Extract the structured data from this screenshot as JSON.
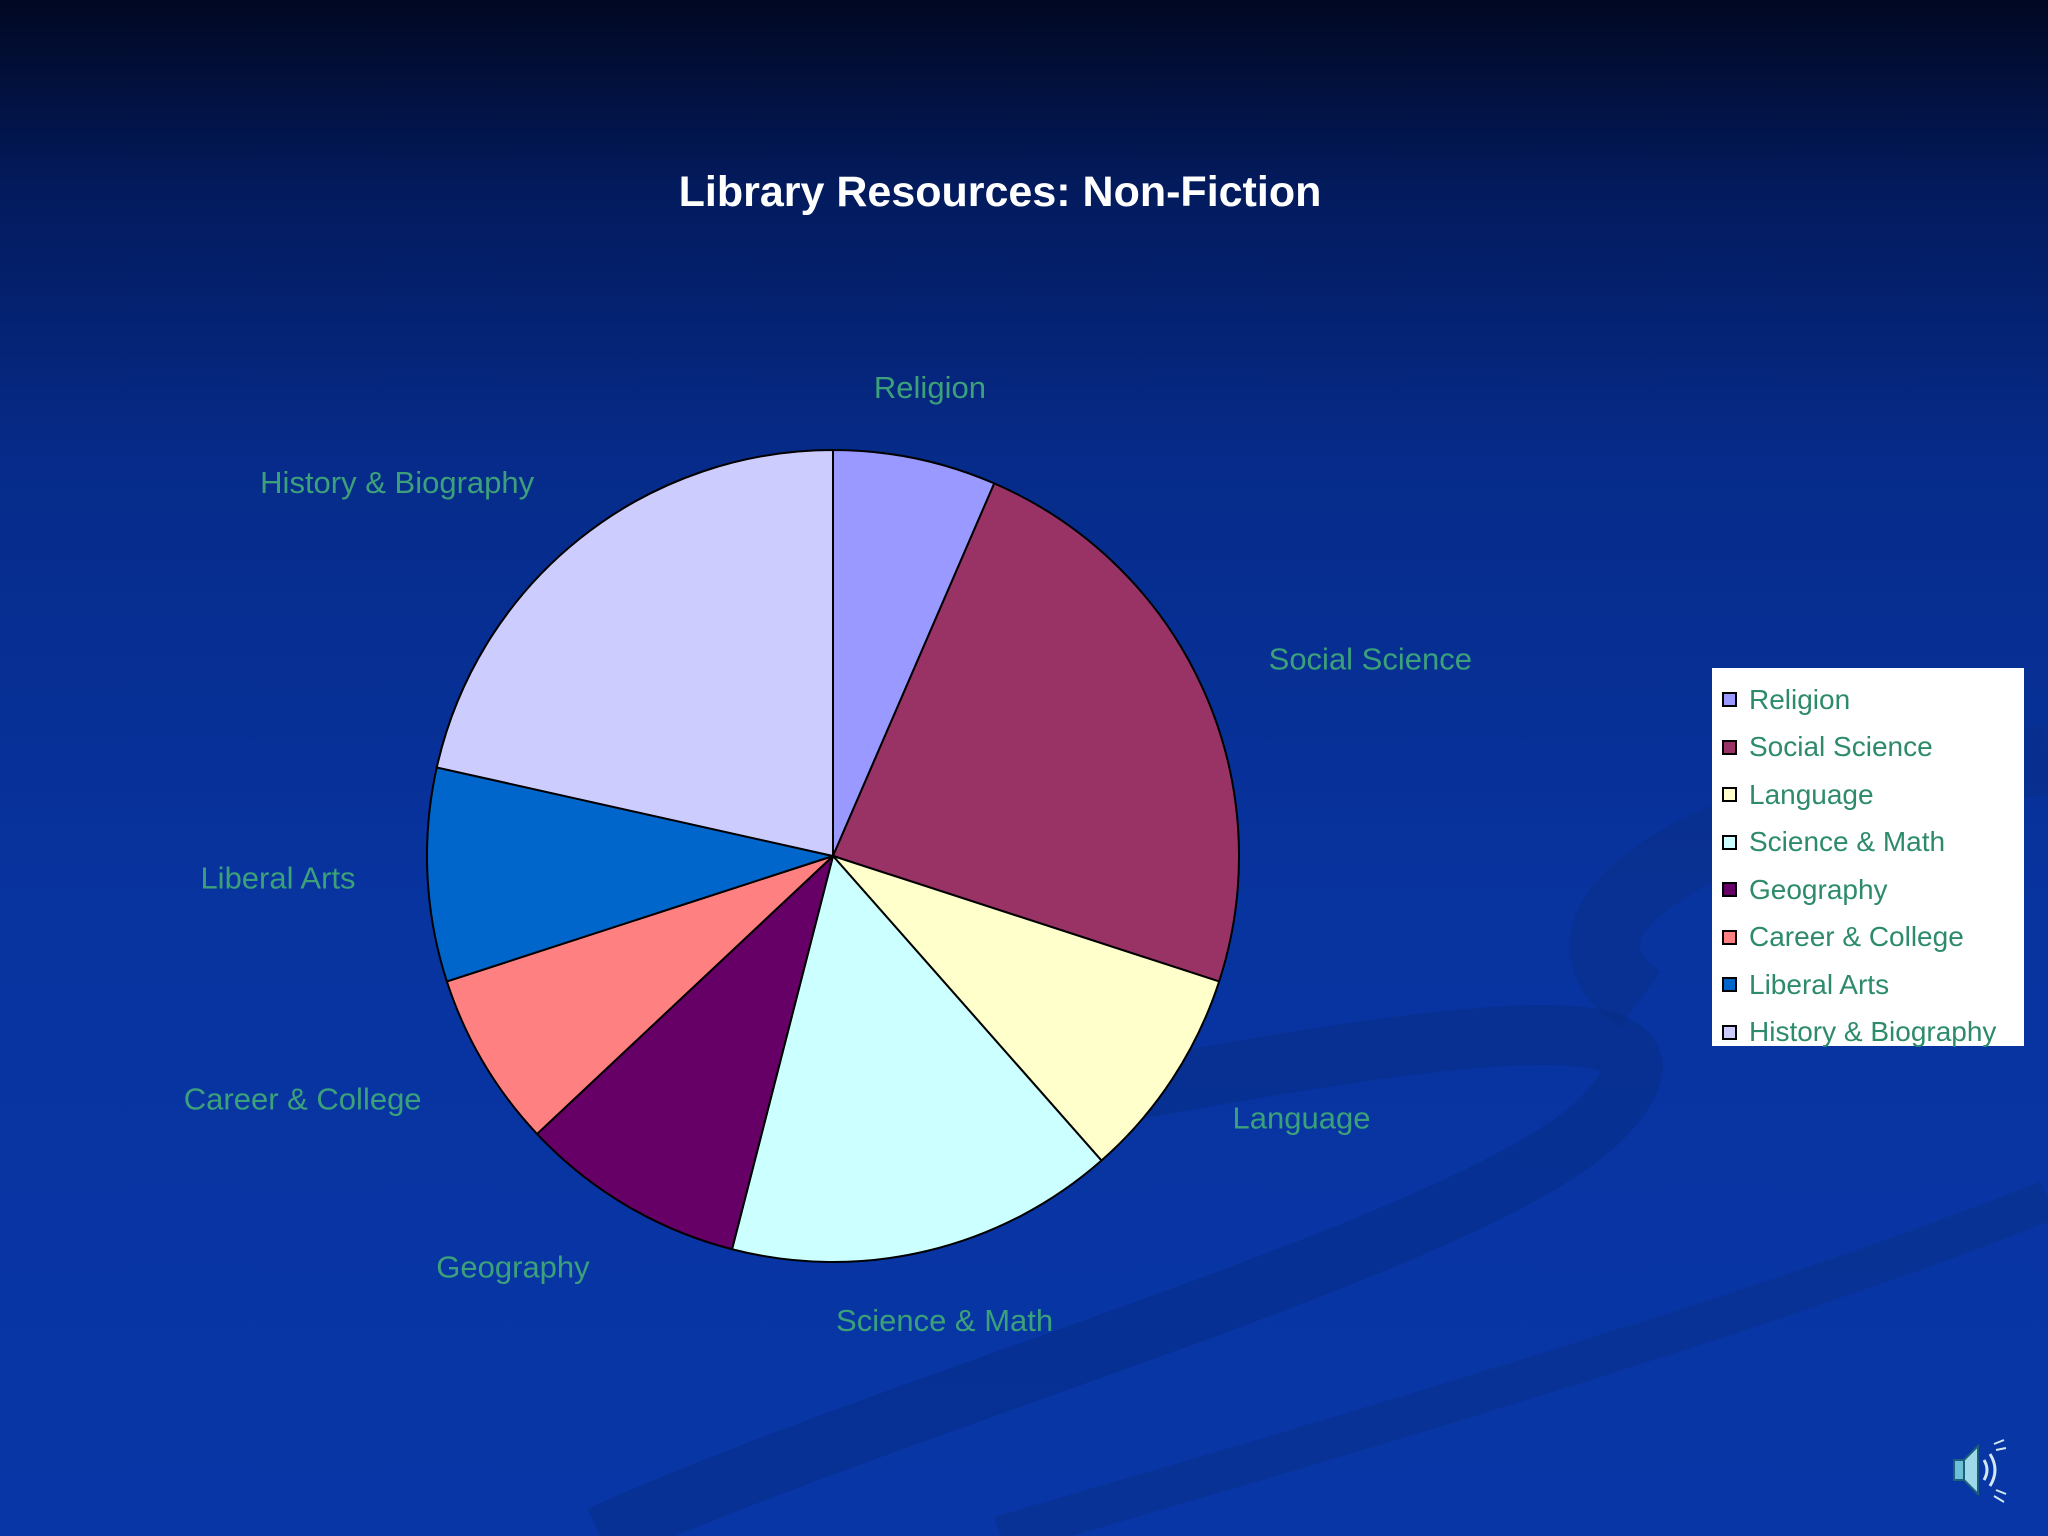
{
  "chart_data": {
    "type": "pie",
    "title": "Library Resources: Non-Fiction",
    "categories": [
      "Religion",
      "Social Science",
      "Language",
      "Science & Math",
      "Geography",
      "Career & College",
      "Liberal Arts",
      "History & Biography"
    ],
    "values": [
      6.5,
      23.5,
      8.5,
      15.5,
      9.0,
      7.0,
      8.5,
      21.5
    ],
    "colors": [
      "#9999ff",
      "#993366",
      "#ffffcc",
      "#ccffff",
      "#660066",
      "#ff8080",
      "#0066cc",
      "#ccccff"
    ],
    "legend_position": "right",
    "label_color": "#3ca07a"
  },
  "legend": {
    "items": [
      "Religion",
      "Social Science",
      "Language",
      "Science & Math",
      "Geography",
      "Career & College",
      "Liberal Arts",
      "History & Biography"
    ]
  },
  "icons": {
    "speaker": "speaker-icon"
  }
}
